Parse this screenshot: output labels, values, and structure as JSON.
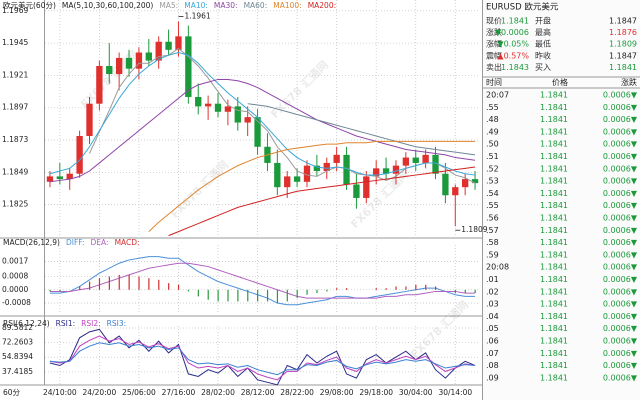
{
  "chart_data": [
    {
      "type": "candlestick",
      "title": "欧元美元(60分)",
      "subtitle": "MA(5,10,30,60,100,200)",
      "categories": [
        null,
        "24/10:00",
        null,
        null,
        null,
        "24/20:00",
        null,
        null,
        null,
        "25/06:00",
        null,
        null,
        null,
        "27/16:00",
        null,
        null,
        null,
        "28/02:00",
        null,
        null,
        null,
        "28/12:00",
        null,
        null,
        null,
        "28/22:00",
        null,
        null,
        null,
        "29/08:00",
        null,
        null,
        null,
        "29/18:00",
        null,
        null,
        null,
        "30/04:00",
        null,
        null,
        null,
        "30/14:00",
        null,
        null
      ],
      "open": [
        1.1842,
        1.1846,
        1.1844,
        1.1848,
        1.1876,
        1.19,
        1.1928,
        1.1922,
        1.1934,
        1.1926,
        1.1938,
        1.1932,
        1.1946,
        1.194,
        1.195,
        1.1905,
        1.1898,
        1.19,
        1.1894,
        1.1898,
        1.1886,
        1.189,
        1.1868,
        1.1856,
        1.1838,
        1.1846,
        1.1842,
        1.1854,
        1.185,
        1.1856,
        1.1862,
        1.184,
        1.183,
        1.1846,
        1.1852,
        1.1848,
        1.1854,
        1.186,
        1.1856,
        1.1862,
        1.1848,
        1.1832,
        1.1838,
        1.1844
      ],
      "high": [
        1.185,
        1.1856,
        1.1852,
        1.188,
        1.1905,
        1.1932,
        1.1945,
        1.1938,
        1.194,
        1.1942,
        1.1948,
        1.195,
        1.1955,
        1.1961,
        1.1958,
        1.1915,
        1.1906,
        1.1908,
        1.1903,
        1.1905,
        1.1898,
        1.1896,
        1.1878,
        1.1866,
        1.185,
        1.1852,
        1.1858,
        1.1862,
        1.186,
        1.1868,
        1.1868,
        1.1848,
        1.185,
        1.1858,
        1.186,
        1.1858,
        1.1864,
        1.1866,
        1.1866,
        1.1868,
        1.1856,
        1.184,
        1.1848,
        1.185
      ],
      "low": [
        1.1838,
        1.184,
        1.1836,
        1.1845,
        1.187,
        1.1895,
        1.1915,
        1.191,
        1.192,
        1.1918,
        1.1928,
        1.1926,
        1.1936,
        1.1935,
        1.19,
        1.1892,
        1.1888,
        1.189,
        1.1884,
        1.188,
        1.1876,
        1.1862,
        1.185,
        1.1832,
        1.183,
        1.1838,
        1.1838,
        1.1846,
        1.1844,
        1.185,
        1.1836,
        1.1822,
        1.1826,
        1.184,
        1.1844,
        1.184,
        1.1848,
        1.185,
        1.1852,
        1.1844,
        1.1826,
        1.1809,
        1.1832,
        1.1836
      ],
      "close": [
        1.1846,
        1.1844,
        1.1848,
        1.1876,
        1.19,
        1.1928,
        1.1922,
        1.1934,
        1.1926,
        1.1938,
        1.1932,
        1.1946,
        1.194,
        1.195,
        1.1905,
        1.1898,
        1.19,
        1.1894,
        1.1898,
        1.1886,
        1.189,
        1.1868,
        1.1856,
        1.1838,
        1.1846,
        1.1842,
        1.1854,
        1.185,
        1.1856,
        1.1862,
        1.184,
        1.183,
        1.1846,
        1.1852,
        1.1848,
        1.1854,
        1.186,
        1.1856,
        1.1862,
        1.1848,
        1.1832,
        1.1838,
        1.1844,
        1.1841
      ],
      "up_color": "#e0302e",
      "down_color": "#1a9a3a",
      "series": [
        {
          "name": "MA5:",
          "color": "#9a9a9a",
          "values": [
            null,
            null,
            null,
            null,
            1.1863,
            1.1879,
            1.1895,
            1.1912,
            1.1922,
            1.193,
            1.193,
            1.1935,
            1.1936,
            1.1941,
            1.1935,
            1.1928,
            1.1919,
            1.1909,
            1.1899,
            1.1895,
            1.1894,
            1.1887,
            1.188,
            1.1868,
            1.186,
            1.185,
            1.1847,
            1.1846,
            1.185,
            1.1853,
            1.1852,
            1.1848,
            1.1847,
            1.1846,
            1.1843,
            1.1846,
            1.1852,
            1.1854,
            1.1856,
            1.1856,
            1.1852,
            1.1847,
            1.1845,
            1.1841
          ]
        },
        {
          "name": "MA10:",
          "color": "#3aa8d8",
          "values": [
            1.1848,
            1.185,
            1.1852,
            1.1858,
            1.1868,
            1.188,
            1.1892,
            1.1904,
            1.1914,
            1.1922,
            1.1928,
            1.1933,
            1.1936,
            1.1938,
            1.1936,
            1.193,
            1.1922,
            1.1915,
            1.1908,
            1.1902,
            1.1896,
            1.189,
            1.1882,
            1.1874,
            1.1866,
            1.186,
            1.1856,
            1.1853,
            1.1852,
            1.1853,
            1.1852,
            1.1849,
            1.1847,
            1.1847,
            1.1848,
            1.185,
            1.1852,
            1.1854,
            1.1856,
            1.1856,
            1.1853,
            1.185,
            1.1848,
            1.1847
          ]
        },
        {
          "name": "MA30:",
          "color": "#8e44a8",
          "values": [
            1.1842,
            1.1843,
            1.1844,
            1.1846,
            1.185,
            1.1856,
            1.1862,
            1.1868,
            1.1874,
            1.188,
            1.1886,
            1.1892,
            1.1898,
            1.1904,
            1.191,
            1.1914,
            1.1916,
            1.1918,
            1.1918,
            1.1917,
            1.1915,
            1.1912,
            1.1908,
            1.1904,
            1.19,
            1.1896,
            1.1892,
            1.1888,
            1.1885,
            1.1882,
            1.1879,
            1.1876,
            1.1874,
            1.1872,
            1.187,
            1.1868,
            1.1866,
            1.1865,
            1.1864,
            1.1863,
            1.1862,
            1.186,
            1.1859,
            1.1858
          ]
        },
        {
          "name": "MA60:",
          "color": "#6f8795",
          "values": [
            null,
            null,
            null,
            null,
            null,
            null,
            null,
            null,
            null,
            null,
            null,
            null,
            null,
            null,
            null,
            null,
            null,
            null,
            null,
            null,
            1.19,
            1.1899,
            1.1898,
            1.1896,
            1.1894,
            1.1892,
            1.189,
            1.1888,
            1.1886,
            1.1884,
            1.1882,
            1.188,
            1.1878,
            1.1876,
            1.1874,
            1.1872,
            1.187,
            1.1868,
            1.1867,
            1.1866,
            1.1865,
            1.1864,
            1.1863,
            1.1862
          ]
        },
        {
          "name": "MA100:",
          "color": "#e0842c",
          "values": [
            null,
            null,
            null,
            null,
            null,
            null,
            null,
            null,
            null,
            null,
            1.1805,
            1.1812,
            1.1818,
            1.1824,
            1.183,
            1.1836,
            1.1841,
            1.1846,
            1.185,
            1.1854,
            1.1857,
            1.186,
            1.1862,
            1.1864,
            1.1866,
            1.1867,
            1.1868,
            1.1869,
            1.187,
            1.187,
            1.1871,
            1.1871,
            1.1871,
            1.1872,
            1.1872,
            1.1872,
            1.1872,
            1.1872,
            1.1872,
            1.1872,
            1.1872,
            1.1872,
            1.1872,
            1.1872
          ]
        },
        {
          "name": "MA200:",
          "color": "#d42020",
          "values": [
            null,
            null,
            null,
            null,
            null,
            null,
            null,
            null,
            null,
            null,
            null,
            null,
            1.1802,
            1.1805,
            1.1808,
            1.1811,
            1.1814,
            1.1817,
            1.182,
            1.1823,
            1.1825,
            1.1827,
            1.1829,
            1.1831,
            1.1833,
            1.1835,
            1.1836,
            1.1837,
            1.1838,
            1.1839,
            1.184,
            1.1841,
            1.1842,
            1.1843,
            1.1844,
            1.1845,
            1.1846,
            1.1847,
            1.1848,
            1.1849,
            1.185,
            1.1851,
            1.1852,
            1.1853
          ]
        }
      ],
      "annotations": [
        1.1961,
        1.1809
      ],
      "ylim": [
        1.1801,
        1.1977
      ],
      "yticks": [
        1.1969,
        1.1945,
        1.1921,
        1.1897,
        1.1873,
        1.1849,
        1.1825
      ],
      "grid": true,
      "period_label": "60分"
    },
    {
      "type": "line",
      "title": "MACD(26,12,9)",
      "series": [
        {
          "name": "DIFF:",
          "color": "#4a90d9",
          "values": [
            -0.0002,
            -0.0002,
            -0.0001,
            0.0002,
            0.0006,
            0.001,
            0.0013,
            0.0016,
            0.0018,
            0.0019,
            0.002,
            0.002,
            0.0019,
            0.0019,
            0.0015,
            0.0011,
            0.0008,
            0.0005,
            0.0003,
            0.0001,
            -0.0001,
            -0.0003,
            -0.0005,
            -0.0008,
            -0.0009,
            -0.0009,
            -0.0008,
            -0.0007,
            -0.0006,
            -0.0004,
            -0.0004,
            -0.0005,
            -0.0005,
            -0.0004,
            -0.0003,
            -0.0002,
            -0.0001,
            0,
            0.0001,
            0.0001,
            -0.0001,
            -0.0003,
            -0.0004,
            -0.0004
          ]
        },
        {
          "name": "DEA:",
          "color": "#b060c0",
          "values": [
            -0.0001,
            -0.0001,
            -0.0001,
            0,
            0.0001,
            0.0003,
            0.0005,
            0.0007,
            0.0009,
            0.0011,
            0.0013,
            0.0014,
            0.0015,
            0.0016,
            0.0016,
            0.0015,
            0.0014,
            0.0012,
            0.001,
            0.0008,
            0.0006,
            0.0004,
            0.0002,
            0,
            -0.0002,
            -0.0004,
            -0.0005,
            -0.0005,
            -0.0005,
            -0.0005,
            -0.0005,
            -0.0005,
            -0.0005,
            -0.0005,
            -0.0004,
            -0.0004,
            -0.0003,
            -0.0003,
            -0.0002,
            -0.0001,
            -0.0001,
            -0.0001,
            -0.0002,
            -0.0002
          ]
        },
        {
          "name": "MACD:",
          "type": "bar",
          "color": "#d03030",
          "negative_color": "#2a9a40",
          "values": [
            -0.0001,
            -0.0001,
            0,
            0.0002,
            0.0005,
            0.0007,
            0.0008,
            0.0009,
            0.0009,
            0.0008,
            0.0007,
            0.0006,
            0.0004,
            0.0003,
            -0.0001,
            -0.0004,
            -0.0006,
            -0.0007,
            -0.0007,
            -0.0007,
            -0.0007,
            -0.0007,
            -0.0007,
            -0.0008,
            -0.0007,
            -0.0005,
            -0.0003,
            -0.0002,
            -0.0001,
            0.0001,
            0.0001,
            0,
            0,
            0.0001,
            0.0001,
            0.0002,
            0.0002,
            0.0003,
            0.0003,
            0.0002,
            0,
            -0.0002,
            -0.0002,
            -0.0002
          ]
        }
      ],
      "ylim": [
        -0.0014,
        0.0027
      ],
      "yticks": [
        0.0017,
        0.0008,
        {
          "value": 0,
          "label": "0.0000"
        },
        -0.0008
      ],
      "grid": true
    },
    {
      "type": "line",
      "title": "RSI(6,12,24)",
      "series": [
        {
          "name": "RSI1:",
          "color": "#2a2a8a",
          "values": [
            48,
            45,
            52,
            78,
            85,
            88,
            72,
            80,
            66,
            75,
            62,
            74,
            60,
            70,
            35,
            32,
            40,
            36,
            45,
            32,
            42,
            28,
            25,
            22,
            45,
            40,
            58,
            48,
            56,
            62,
            35,
            30,
            52,
            58,
            48,
            55,
            62,
            52,
            60,
            40,
            30,
            42,
            50,
            45
          ]
        },
        {
          "name": "RSI2:",
          "color": "#c040c0",
          "values": [
            50,
            48,
            50,
            68,
            75,
            80,
            74,
            77,
            70,
            73,
            67,
            71,
            65,
            68,
            48,
            42,
            44,
            42,
            45,
            38,
            42,
            35,
            31,
            28,
            38,
            38,
            48,
            46,
            51,
            55,
            42,
            38,
            47,
            52,
            48,
            52,
            56,
            52,
            56,
            46,
            38,
            42,
            47,
            45
          ]
        },
        {
          "name": "RSI3:",
          "color": "#3a7fd0",
          "values": [
            50,
            49,
            50,
            62,
            68,
            72,
            70,
            72,
            68,
            70,
            66,
            68,
            64,
            66,
            52,
            47,
            48,
            46,
            47,
            43,
            45,
            40,
            37,
            34,
            40,
            40,
            46,
            45,
            49,
            51,
            44,
            41,
            46,
            49,
            47,
            49,
            52,
            50,
            52,
            47,
            42,
            44,
            46,
            45
          ]
        }
      ],
      "ylim": [
        23,
        92
      ],
      "yticks": [
        89.5812,
        72.2603,
        54.8394,
        37.4185
      ],
      "grid": true
    }
  ],
  "quote_panel": {
    "header": "EURUSD 欧元美元",
    "rows": [
      [
        {
          "text": "现价"
        },
        {
          "text": "1.1841",
          "color": "#1a9a3a"
        },
        {
          "text": "开盘"
        },
        {
          "text": "1.1847",
          "color": "#222222"
        }
      ],
      [
        {
          "text": "涨跌"
        },
        {
          "text": "▼0.0006",
          "color": "#1a9a3a"
        },
        {
          "text": "最高"
        },
        {
          "text": "1.1876",
          "color": "#e0302e"
        }
      ],
      [
        {
          "text": "涨幅"
        },
        {
          "text": "▼0.05%",
          "color": "#1a9a3a"
        },
        {
          "text": "最低"
        },
        {
          "text": "1.1809",
          "color": "#1a9a3a"
        }
      ],
      [
        {
          "text": "震幅"
        },
        {
          "text": "▲0.57%",
          "color": "#e0302e"
        },
        {
          "text": "昨收"
        },
        {
          "text": "1.1847",
          "color": "#222222"
        }
      ],
      [
        {
          "text": "卖出"
        },
        {
          "text": "1.1843",
          "color": "#1a9a3a"
        },
        {
          "text": "买入"
        },
        {
          "text": "1.1841",
          "color": "#1a9a3a"
        }
      ]
    ]
  },
  "trades": {
    "header": [
      "时间",
      "价格",
      "涨跌"
    ],
    "color": "#1a9a3a",
    "rows": [
      [
        "20:07",
        "1.1841",
        "0.0006▼"
      ],
      [
        ".55",
        "1.1841",
        "0.0006▼"
      ],
      [
        ".48",
        "1.1841",
        "0.0006▼"
      ],
      [
        ".49",
        "1.1841",
        "0.0006▼"
      ],
      [
        ".50",
        "1.1841",
        "0.0006▼"
      ],
      [
        ".51",
        "1.1841",
        "0.0006▼"
      ],
      [
        ".52",
        "1.1841",
        "0.0006▼"
      ],
      [
        ".53",
        "1.1841",
        "0.0006▼"
      ],
      [
        ".54",
        "1.1841",
        "0.0006▼"
      ],
      [
        ".55",
        "1.1841",
        "0.0006▼"
      ],
      [
        ".56",
        "1.1841",
        "0.0006▼"
      ],
      [
        ".57",
        "1.1841",
        "0.0006▼"
      ],
      [
        ".58",
        "1.1841",
        "0.0006▼"
      ],
      [
        ".59",
        "1.1841",
        "0.0006▼"
      ],
      [
        "20:08",
        "1.1841",
        "0.0006▼"
      ],
      [
        ".01",
        "1.1841",
        "0.0006▼"
      ],
      [
        ".02",
        "1.1841",
        "0.0006▼"
      ],
      [
        ".03",
        "1.1841",
        "0.0006▼"
      ],
      [
        ".04",
        "1.1841",
        "0.0006▼"
      ],
      [
        ".05",
        "1.1841",
        "0.0006▼"
      ],
      [
        ".06",
        "1.1841",
        "0.0006▼"
      ],
      [
        ".07",
        "1.1841",
        "0.0006▼"
      ],
      [
        ".08",
        "1.1841",
        "0.0006▼"
      ],
      [
        ".09",
        "1.1841",
        "0.0006▼"
      ]
    ]
  },
  "watermark": "FX678 汇通网"
}
